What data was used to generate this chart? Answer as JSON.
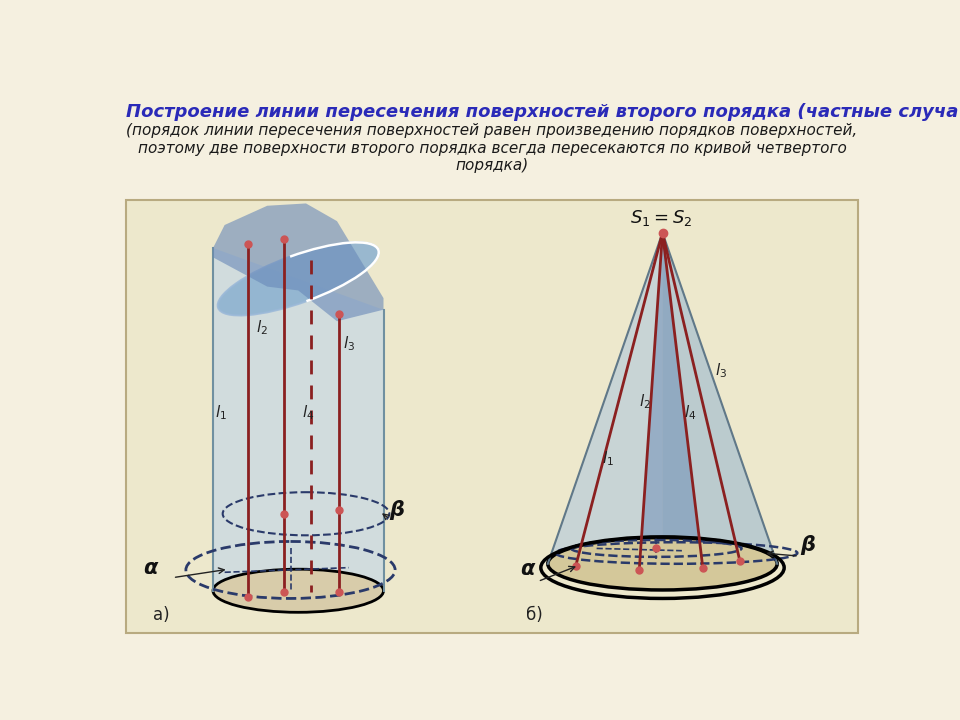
{
  "bg_color": "#f5f0e0",
  "diagram_bg": "#ede8cc",
  "title": "Построение линии пересечения поверхностей второго порядка (частные случа",
  "subtitle": "(порядок линии пересечения поверхностей равен произведению порядков поверхностей,\nпоэтому две поверхности второго порядка всегда пересекаются по кривой четвертого\nпорядка)",
  "title_color": "#2a2ab8",
  "subtitle_color": "#1a1a1a",
  "title_fontsize": 13,
  "subtitle_fontsize": 11,
  "label_a": "а)",
  "label_b": "б)",
  "line_color": "#8b2020",
  "dashed_color": "#2a3a6a",
  "point_color": "#cc5555",
  "alpha_label": "α",
  "beta_label": "β"
}
